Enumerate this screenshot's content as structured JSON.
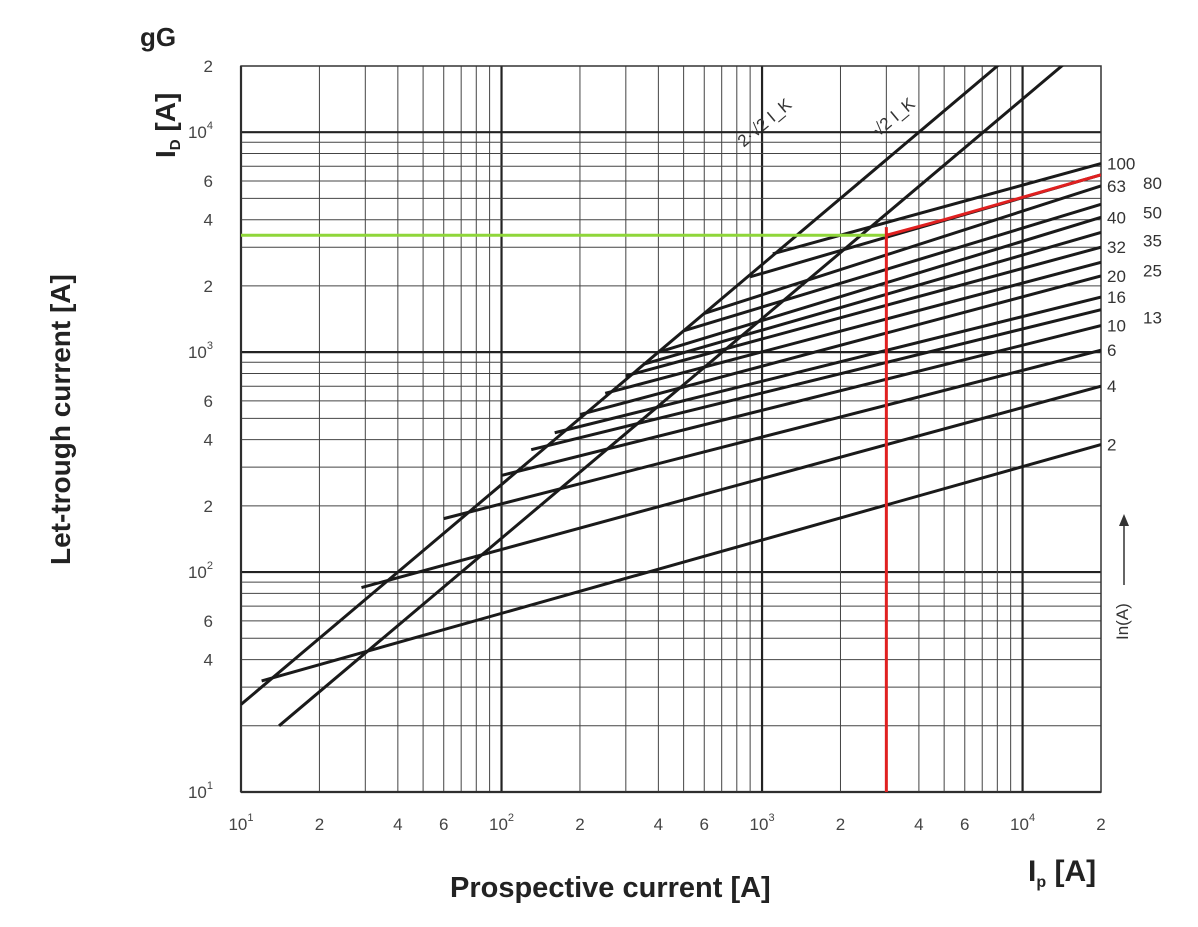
{
  "chart_data": {
    "type": "line",
    "title": "gG",
    "ylabel": "Let-trough current [A]",
    "ylabel_axis": "I",
    "ylabel_axis_sub": "D",
    "ylabel_axis_unit": " [A]",
    "xlabel": "Prospective current [A]",
    "xlabel_axis": "I",
    "xlabel_axis_sub": "p",
    "xlabel_axis_unit": " [A]",
    "x_scale": "log",
    "y_scale": "log",
    "xlim": [
      10,
      20000
    ],
    "ylim": [
      10,
      20000
    ],
    "grid": true,
    "x_ticks": [
      {
        "value": 10,
        "base": "10",
        "exp": "1"
      },
      {
        "value": 20,
        "base": "2",
        "exp": ""
      },
      {
        "value": 40,
        "base": "4",
        "exp": ""
      },
      {
        "value": 60,
        "base": "6",
        "exp": ""
      },
      {
        "value": 100,
        "base": "10",
        "exp": "2"
      },
      {
        "value": 200,
        "base": "2",
        "exp": ""
      },
      {
        "value": 400,
        "base": "4",
        "exp": ""
      },
      {
        "value": 600,
        "base": "6",
        "exp": ""
      },
      {
        "value": 1000,
        "base": "10",
        "exp": "3"
      },
      {
        "value": 2000,
        "base": "2",
        "exp": ""
      },
      {
        "value": 4000,
        "base": "4",
        "exp": ""
      },
      {
        "value": 6000,
        "base": "6",
        "exp": ""
      },
      {
        "value": 10000,
        "base": "10",
        "exp": "4"
      },
      {
        "value": 20000,
        "base": "2",
        "exp": ""
      }
    ],
    "y_ticks": [
      {
        "value": 10,
        "base": "10",
        "exp": "1"
      },
      {
        "value": 40,
        "base": "4",
        "exp": ""
      },
      {
        "value": 60,
        "base": "6",
        "exp": ""
      },
      {
        "value": 100,
        "base": "10",
        "exp": "2"
      },
      {
        "value": 200,
        "base": "2",
        "exp": ""
      },
      {
        "value": 400,
        "base": "4",
        "exp": ""
      },
      {
        "value": 600,
        "base": "6",
        "exp": ""
      },
      {
        "value": 1000,
        "base": "10",
        "exp": "3"
      },
      {
        "value": 2000,
        "base": "2",
        "exp": ""
      },
      {
        "value": 4000,
        "base": "4",
        "exp": ""
      },
      {
        "value": 6000,
        "base": "6",
        "exp": ""
      },
      {
        "value": 10000,
        "base": "10",
        "exp": "4"
      },
      {
        "value": 20000,
        "base": "2",
        "exp": ""
      }
    ],
    "reference_lines": [
      {
        "name": "2·√2 I_K",
        "label": "2·√2 I_K",
        "points": [
          [
            10,
            25
          ],
          [
            16000,
            40000
          ]
        ]
      },
      {
        "name": "√2 I_K",
        "label": "√2 I_K",
        "points": [
          [
            14,
            20
          ],
          [
            20000,
            28284
          ]
        ]
      }
    ],
    "series": [
      {
        "name": "2",
        "knee": [
          12,
          32
        ],
        "end": [
          20000,
          380
        ]
      },
      {
        "name": "4",
        "knee": [
          29,
          85
        ],
        "end": [
          20000,
          700
        ]
      },
      {
        "name": "6",
        "knee": [
          60,
          175
        ],
        "end": [
          20000,
          1020
        ]
      },
      {
        "name": "10",
        "knee": [
          100,
          275
        ],
        "end": [
          20000,
          1320
        ]
      },
      {
        "name": "13",
        "knee": [
          130,
          360
        ],
        "end": [
          20000,
          1560
        ]
      },
      {
        "name": "16",
        "knee": [
          160,
          430
        ],
        "end": [
          20000,
          1780
        ]
      },
      {
        "name": "20",
        "knee": [
          200,
          520
        ],
        "end": [
          20000,
          2220
        ]
      },
      {
        "name": "25",
        "knee": [
          250,
          650
        ],
        "end": [
          20000,
          2560
        ]
      },
      {
        "name": "32",
        "knee": [
          300,
          780
        ],
        "end": [
          20000,
          3000
        ]
      },
      {
        "name": "35",
        "knee": [
          350,
          880
        ],
        "end": [
          20000,
          3500
        ]
      },
      {
        "name": "40",
        "knee": [
          400,
          1000
        ],
        "end": [
          20000,
          4100
        ]
      },
      {
        "name": "50",
        "knee": [
          500,
          1250
        ],
        "end": [
          20000,
          4700
        ]
      },
      {
        "name": "63",
        "knee": [
          600,
          1500
        ],
        "end": [
          20000,
          5700
        ]
      },
      {
        "name": "80",
        "knee": [
          900,
          2200
        ],
        "end": [
          20000,
          6400
        ]
      },
      {
        "name": "100",
        "knee": [
          1100,
          2800
        ],
        "end": [
          20000,
          7200
        ]
      }
    ],
    "series_label_side": "right",
    "series_axis_label": "In(A)",
    "annotations": {
      "red_line": {
        "color": "#e02020",
        "points": [
          [
            3000,
            10
          ],
          [
            3000,
            3700
          ],
          [
            3000,
            3400
          ],
          [
            5000,
            4000
          ],
          [
            20000,
            6400
          ]
        ]
      },
      "green_line": {
        "color": "#8fd63a",
        "points": [
          [
            10,
            3400
          ],
          [
            3000,
            3400
          ]
        ]
      }
    }
  }
}
